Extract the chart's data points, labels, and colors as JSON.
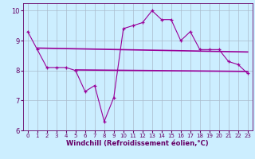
{
  "xlabel": "Windchill (Refroidissement éolien,°C)",
  "x_values": [
    0,
    1,
    2,
    3,
    4,
    5,
    6,
    7,
    8,
    9,
    10,
    11,
    12,
    13,
    14,
    15,
    16,
    17,
    18,
    19,
    20,
    21,
    22,
    23
  ],
  "y_main": [
    9.3,
    8.7,
    8.1,
    8.1,
    8.1,
    8.0,
    7.3,
    7.5,
    6.3,
    7.1,
    9.4,
    9.5,
    9.6,
    10.0,
    9.7,
    9.7,
    9.0,
    9.3,
    8.7,
    8.7,
    8.7,
    8.3,
    8.2,
    7.9
  ],
  "line1_x": [
    1,
    23
  ],
  "line1_y": [
    8.75,
    8.62
  ],
  "line2_x": [
    5,
    23
  ],
  "line2_y": [
    8.02,
    7.97
  ],
  "line_color": "#990099",
  "marker_color": "#990099",
  "background_color": "#cceeff",
  "grid_color": "#aabbcc",
  "text_color": "#660066",
  "ylim": [
    6.0,
    10.25
  ],
  "xlim": [
    -0.5,
    23.5
  ],
  "yticks": [
    6,
    7,
    8,
    9,
    10
  ],
  "xticks": [
    0,
    1,
    2,
    3,
    4,
    5,
    6,
    7,
    8,
    9,
    10,
    11,
    12,
    13,
    14,
    15,
    16,
    17,
    18,
    19,
    20,
    21,
    22,
    23
  ],
  "xlabel_fontsize": 6,
  "tick_fontsize_x": 5,
  "tick_fontsize_y": 6
}
